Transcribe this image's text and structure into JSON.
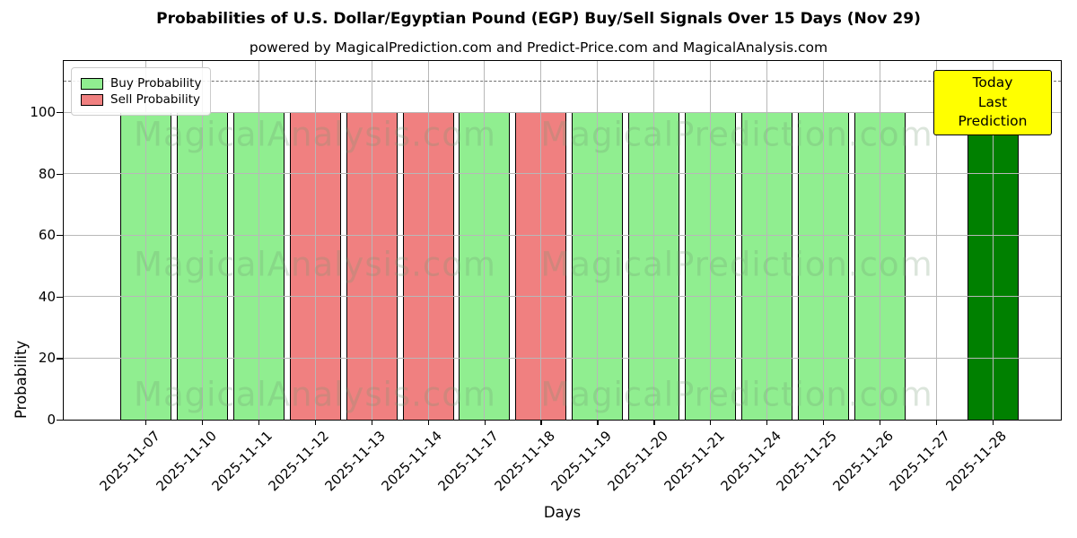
{
  "title": "Probabilities of U.S. Dollar/Egyptian Pound (EGP) Buy/Sell Signals Over 15 Days (Nov 29)",
  "subtitle": "powered by MagicalPrediction.com and Predict-Price.com and MagicalAnalysis.com",
  "annotation": {
    "line1": "Today",
    "line2": "Last Prediction"
  },
  "watermarks": {
    "left": "MagicalAnalysis.com",
    "right": "MagicalPrediction.com"
  },
  "chart_data": {
    "type": "bar",
    "title": "Probabilities of U.S. Dollar/Egyptian Pound (EGP) Buy/Sell Signals Over 15 Days (Nov 29)",
    "xlabel": "Days",
    "ylabel": "Probability",
    "ylim": [
      0,
      117
    ],
    "yticks": [
      0,
      20,
      40,
      60,
      80,
      100
    ],
    "grid": true,
    "dashed_guide_y": 110,
    "legend_position": "top-left",
    "categories": [
      "2025-11-07",
      "2025-11-10",
      "2025-11-11",
      "2025-11-12",
      "2025-11-13",
      "2025-11-14",
      "2025-11-17",
      "2025-11-18",
      "2025-11-19",
      "2025-11-20",
      "2025-11-21",
      "2025-11-24",
      "2025-11-25",
      "2025-11-26",
      "2025-11-27",
      "2025-11-28"
    ],
    "series": [
      {
        "name": "Buy Probability",
        "color": "#90ee90",
        "values": [
          100,
          100,
          100,
          0,
          0,
          0,
          100,
          0,
          100,
          100,
          100,
          100,
          100,
          100,
          0,
          0
        ]
      },
      {
        "name": "Sell Probability",
        "color": "#f08080",
        "values": [
          0,
          0,
          0,
          100,
          100,
          100,
          0,
          100,
          0,
          0,
          0,
          0,
          0,
          0,
          0,
          0
        ]
      },
      {
        "name": "Today Last Prediction",
        "color": "#008000",
        "values": [
          0,
          0,
          0,
          0,
          0,
          0,
          0,
          0,
          0,
          0,
          0,
          0,
          0,
          0,
          0,
          100
        ]
      }
    ],
    "colors": {
      "buy": "#90ee90",
      "sell": "#f08080",
      "today": "#008000",
      "grid": "#b8b8b8",
      "annotation_bg": "#ffff00",
      "bar_edge": "#000000"
    }
  }
}
